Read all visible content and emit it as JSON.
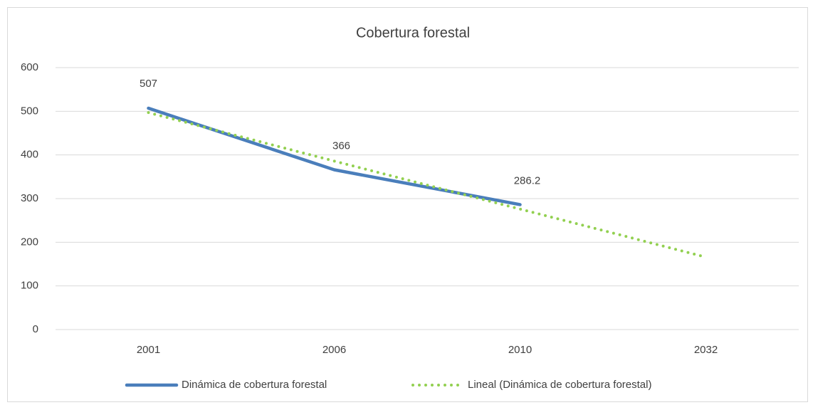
{
  "chart_data": {
    "type": "line",
    "title": "Cobertura forestal",
    "categories": [
      "2001",
      "2006",
      "2010",
      "2032"
    ],
    "series": [
      {
        "name": "Dinámica de cobertura forestal",
        "color": "#4a7ebb",
        "style": "solid",
        "data_labels": true,
        "values": [
          507,
          366,
          286.2,
          null
        ]
      },
      {
        "name": "Lineal (Dinámica de cobertura forestal)",
        "color": "#92d050",
        "style": "dotted",
        "data_labels": false,
        "values": [
          497,
          386,
          276,
          166
        ]
      }
    ],
    "ylim": [
      0,
      600
    ],
    "yticks": [
      0,
      100,
      200,
      300,
      400,
      500,
      600
    ],
    "grid": true,
    "legend": "bottom"
  }
}
